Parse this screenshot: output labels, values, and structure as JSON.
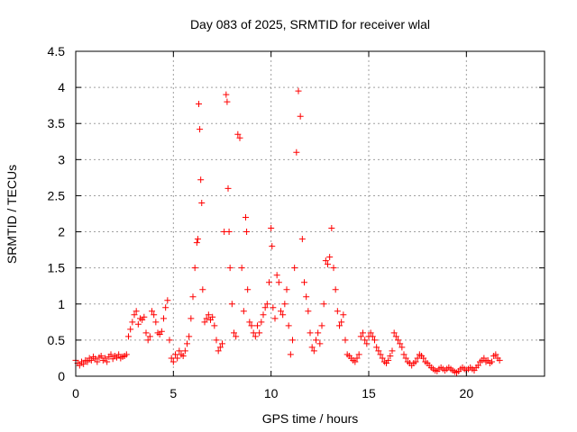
{
  "chart_data": {
    "type": "scatter",
    "title": "Day 083 of 2025, SRMTID for receiver wlal",
    "xlabel": "GPS time / hours",
    "ylabel": "SRMTID / TECUs",
    "xlim": [
      0,
      24
    ],
    "ylim": [
      0,
      4.5
    ],
    "x_ticks": [
      0,
      5,
      10,
      15,
      20
    ],
    "x_tick_labels": [
      "0",
      "5",
      "10",
      "15",
      "20"
    ],
    "y_ticks": [
      0,
      0.5,
      1,
      1.5,
      2,
      2.5,
      3,
      3.5,
      4,
      4.5
    ],
    "y_tick_labels": [
      "0",
      "0.5",
      "1",
      "1.5",
      "2",
      "2.5",
      "3",
      "3.5",
      "4",
      "4.5"
    ],
    "grid": true,
    "marker": "plus",
    "color": "#ff0000",
    "series": [
      {
        "name": "SRMTID",
        "points": [
          [
            0.0,
            0.22
          ],
          [
            0.1,
            0.18
          ],
          [
            0.2,
            0.15
          ],
          [
            0.3,
            0.2
          ],
          [
            0.4,
            0.17
          ],
          [
            0.5,
            0.22
          ],
          [
            0.6,
            0.2
          ],
          [
            0.7,
            0.25
          ],
          [
            0.8,
            0.22
          ],
          [
            0.9,
            0.27
          ],
          [
            1.0,
            0.24
          ],
          [
            1.1,
            0.2
          ],
          [
            1.2,
            0.26
          ],
          [
            1.3,
            0.28
          ],
          [
            1.4,
            0.22
          ],
          [
            1.5,
            0.25
          ],
          [
            1.6,
            0.2
          ],
          [
            1.7,
            0.27
          ],
          [
            1.8,
            0.3
          ],
          [
            1.9,
            0.24
          ],
          [
            2.0,
            0.28
          ],
          [
            2.1,
            0.26
          ],
          [
            2.2,
            0.3
          ],
          [
            2.3,
            0.25
          ],
          [
            2.4,
            0.27
          ],
          [
            2.5,
            0.28
          ],
          [
            2.6,
            0.3
          ],
          [
            2.7,
            0.55
          ],
          [
            2.8,
            0.65
          ],
          [
            2.9,
            0.75
          ],
          [
            3.0,
            0.85
          ],
          [
            3.1,
            0.9
          ],
          [
            3.2,
            0.72
          ],
          [
            3.3,
            0.8
          ],
          [
            3.4,
            0.78
          ],
          [
            3.5,
            0.82
          ],
          [
            3.6,
            0.6
          ],
          [
            3.7,
            0.5
          ],
          [
            3.8,
            0.55
          ],
          [
            3.9,
            0.9
          ],
          [
            4.0,
            0.85
          ],
          [
            4.1,
            0.75
          ],
          [
            4.2,
            0.6
          ],
          [
            4.3,
            0.58
          ],
          [
            4.4,
            0.62
          ],
          [
            4.5,
            0.8
          ],
          [
            4.6,
            0.95
          ],
          [
            4.7,
            1.05
          ],
          [
            4.8,
            0.5
          ],
          [
            4.9,
            0.25
          ],
          [
            5.0,
            0.2
          ],
          [
            5.1,
            0.3
          ],
          [
            5.2,
            0.25
          ],
          [
            5.3,
            0.35
          ],
          [
            5.4,
            0.3
          ],
          [
            5.5,
            0.28
          ],
          [
            5.6,
            0.35
          ],
          [
            5.7,
            0.45
          ],
          [
            5.8,
            0.55
          ],
          [
            5.9,
            0.8
          ],
          [
            6.0,
            1.1
          ],
          [
            6.1,
            1.5
          ],
          [
            6.2,
            1.85
          ],
          [
            6.25,
            1.9
          ],
          [
            6.3,
            3.77
          ],
          [
            6.35,
            3.42
          ],
          [
            6.4,
            2.72
          ],
          [
            6.45,
            2.4
          ],
          [
            6.5,
            1.2
          ],
          [
            6.6,
            0.75
          ],
          [
            6.7,
            0.8
          ],
          [
            6.8,
            0.85
          ],
          [
            6.9,
            0.78
          ],
          [
            7.0,
            0.82
          ],
          [
            7.1,
            0.7
          ],
          [
            7.2,
            0.5
          ],
          [
            7.3,
            0.35
          ],
          [
            7.4,
            0.4
          ],
          [
            7.5,
            0.45
          ],
          [
            7.6,
            2.0
          ],
          [
            7.7,
            3.9
          ],
          [
            7.75,
            3.8
          ],
          [
            7.8,
            2.6
          ],
          [
            7.85,
            2.0
          ],
          [
            7.9,
            1.5
          ],
          [
            8.0,
            1.0
          ],
          [
            8.1,
            0.6
          ],
          [
            8.2,
            0.55
          ],
          [
            8.3,
            3.35
          ],
          [
            8.4,
            3.3
          ],
          [
            8.5,
            1.5
          ],
          [
            8.6,
            0.9
          ],
          [
            8.7,
            2.2
          ],
          [
            8.75,
            2.0
          ],
          [
            8.8,
            1.2
          ],
          [
            8.9,
            0.75
          ],
          [
            9.0,
            0.7
          ],
          [
            9.1,
            0.6
          ],
          [
            9.2,
            0.55
          ],
          [
            9.3,
            0.7
          ],
          [
            9.4,
            0.6
          ],
          [
            9.5,
            0.75
          ],
          [
            9.6,
            0.85
          ],
          [
            9.7,
            0.95
          ],
          [
            9.8,
            1.0
          ],
          [
            9.9,
            1.3
          ],
          [
            10.0,
            2.05
          ],
          [
            10.05,
            1.8
          ],
          [
            10.1,
            0.95
          ],
          [
            10.2,
            0.8
          ],
          [
            10.3,
            1.4
          ],
          [
            10.4,
            1.3
          ],
          [
            10.5,
            0.9
          ],
          [
            10.6,
            0.85
          ],
          [
            10.7,
            1.0
          ],
          [
            10.8,
            1.2
          ],
          [
            10.9,
            0.7
          ],
          [
            11.0,
            0.3
          ],
          [
            11.1,
            0.5
          ],
          [
            11.2,
            1.5
          ],
          [
            11.3,
            3.1
          ],
          [
            11.4,
            3.95
          ],
          [
            11.5,
            3.6
          ],
          [
            11.6,
            1.9
          ],
          [
            11.7,
            1.3
          ],
          [
            11.8,
            1.1
          ],
          [
            11.9,
            0.9
          ],
          [
            12.0,
            0.6
          ],
          [
            12.1,
            0.4
          ],
          [
            12.2,
            0.35
          ],
          [
            12.3,
            0.5
          ],
          [
            12.4,
            0.6
          ],
          [
            12.5,
            0.45
          ],
          [
            12.6,
            0.7
          ],
          [
            12.7,
            1.0
          ],
          [
            12.8,
            1.6
          ],
          [
            12.9,
            1.55
          ],
          [
            13.0,
            1.65
          ],
          [
            13.1,
            2.05
          ],
          [
            13.2,
            1.5
          ],
          [
            13.3,
            1.2
          ],
          [
            13.4,
            0.9
          ],
          [
            13.5,
            0.7
          ],
          [
            13.6,
            0.75
          ],
          [
            13.7,
            0.85
          ],
          [
            13.8,
            0.5
          ],
          [
            13.9,
            0.3
          ],
          [
            14.0,
            0.28
          ],
          [
            14.1,
            0.25
          ],
          [
            14.2,
            0.22
          ],
          [
            14.3,
            0.2
          ],
          [
            14.4,
            0.25
          ],
          [
            14.5,
            0.3
          ],
          [
            14.6,
            0.55
          ],
          [
            14.7,
            0.6
          ],
          [
            14.8,
            0.5
          ],
          [
            14.9,
            0.45
          ],
          [
            15.0,
            0.55
          ],
          [
            15.1,
            0.6
          ],
          [
            15.2,
            0.55
          ],
          [
            15.3,
            0.5
          ],
          [
            15.4,
            0.4
          ],
          [
            15.5,
            0.35
          ],
          [
            15.6,
            0.3
          ],
          [
            15.7,
            0.25
          ],
          [
            15.8,
            0.2
          ],
          [
            15.9,
            0.18
          ],
          [
            16.0,
            0.22
          ],
          [
            16.1,
            0.28
          ],
          [
            16.2,
            0.35
          ],
          [
            16.3,
            0.6
          ],
          [
            16.4,
            0.55
          ],
          [
            16.5,
            0.5
          ],
          [
            16.6,
            0.45
          ],
          [
            16.7,
            0.4
          ],
          [
            16.8,
            0.3
          ],
          [
            16.9,
            0.25
          ],
          [
            17.0,
            0.2
          ],
          [
            17.1,
            0.18
          ],
          [
            17.2,
            0.15
          ],
          [
            17.3,
            0.18
          ],
          [
            17.4,
            0.2
          ],
          [
            17.5,
            0.25
          ],
          [
            17.6,
            0.3
          ],
          [
            17.7,
            0.28
          ],
          [
            17.8,
            0.25
          ],
          [
            17.9,
            0.2
          ],
          [
            18.0,
            0.18
          ],
          [
            18.1,
            0.15
          ],
          [
            18.2,
            0.12
          ],
          [
            18.3,
            0.1
          ],
          [
            18.4,
            0.08
          ],
          [
            18.5,
            0.07
          ],
          [
            18.6,
            0.1
          ],
          [
            18.7,
            0.12
          ],
          [
            18.8,
            0.1
          ],
          [
            18.9,
            0.08
          ],
          [
            19.0,
            0.1
          ],
          [
            19.1,
            0.12
          ],
          [
            19.2,
            0.1
          ],
          [
            19.3,
            0.08
          ],
          [
            19.4,
            0.06
          ],
          [
            19.5,
            0.05
          ],
          [
            19.6,
            0.07
          ],
          [
            19.7,
            0.1
          ],
          [
            19.8,
            0.12
          ],
          [
            19.9,
            0.1
          ],
          [
            20.0,
            0.08
          ],
          [
            20.1,
            0.1
          ],
          [
            20.2,
            0.12
          ],
          [
            20.3,
            0.1
          ],
          [
            20.4,
            0.08
          ],
          [
            20.5,
            0.12
          ],
          [
            20.6,
            0.15
          ],
          [
            20.7,
            0.2
          ],
          [
            20.8,
            0.22
          ],
          [
            20.9,
            0.25
          ],
          [
            21.0,
            0.2
          ],
          [
            21.1,
            0.22
          ],
          [
            21.2,
            0.18
          ],
          [
            21.3,
            0.2
          ],
          [
            21.4,
            0.28
          ],
          [
            21.5,
            0.3
          ],
          [
            21.6,
            0.25
          ],
          [
            21.7,
            0.22
          ]
        ]
      }
    ]
  }
}
